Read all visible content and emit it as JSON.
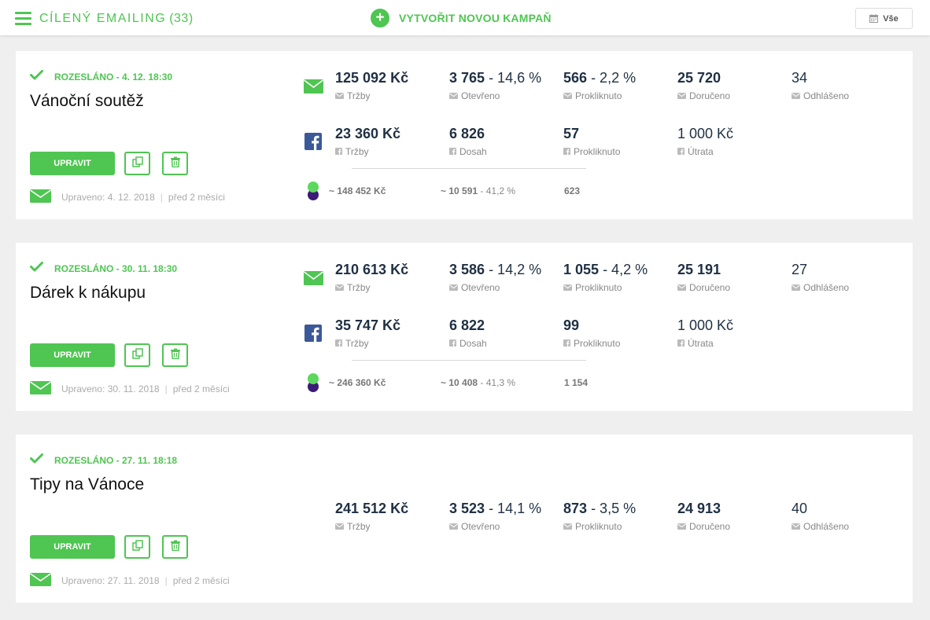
{
  "header": {
    "title": "Cílený emailing",
    "count": "(33)",
    "new_campaign_label": "VYTVOŘIT NOVOU KAMPAŇ",
    "filter_label": "Vše",
    "accent_color": "#4fc552"
  },
  "icons": {
    "menu": "hamburger-icon",
    "new": "plus-circle-icon",
    "filter": "calendar-icon",
    "sent": "check-icon",
    "email": "envelope-icon",
    "facebook": "facebook-icon",
    "copy": "copy-icon",
    "delete": "trash-icon"
  },
  "labels": {
    "edit": "UPRAVIT",
    "modified_prefix": "Upraveno:"
  },
  "campaigns": [
    {
      "status": "ROZESLÁNO - 4. 12. 18:30",
      "name": "Vánoční soutěž",
      "modified_date": "4. 12. 2018",
      "modified_ago": "před 2 měsíci",
      "email": {
        "revenue": {
          "value": "125 092 Kč",
          "label": "Tržby"
        },
        "opened": {
          "value": "3 765",
          "pct": "- 14,6 %",
          "label": "Otevřeno"
        },
        "clicked": {
          "value": "566",
          "pct": "- 2,2 %",
          "label": "Prokliknuto"
        },
        "delivered": {
          "value": "25 720",
          "label": "Doručeno"
        },
        "unsubscribed": {
          "value": "34",
          "label": "Odhlášeno"
        }
      },
      "facebook": {
        "revenue": {
          "value": "23 360 Kč",
          "label": "Tržby"
        },
        "reach": {
          "value": "6 826",
          "label": "Dosah"
        },
        "clicked": {
          "value": "57",
          "label": "Prokliknuto"
        },
        "spend": {
          "value": "1 000 Kč",
          "label": "Útrata"
        }
      },
      "summary": {
        "revenue": "~ 148 452 Kč",
        "reach": "~ 10 591",
        "reach_pct": "- 41,2 %",
        "clicks": "623"
      }
    },
    {
      "status": "ROZESLÁNO - 30. 11. 18:30",
      "name": "Dárek k nákupu",
      "modified_date": "30. 11. 2018",
      "modified_ago": "před 2 měsíci",
      "email": {
        "revenue": {
          "value": "210 613 Kč",
          "label": "Tržby"
        },
        "opened": {
          "value": "3 586",
          "pct": "- 14,2 %",
          "label": "Otevřeno"
        },
        "clicked": {
          "value": "1 055",
          "pct": "- 4,2 %",
          "label": "Prokliknuto"
        },
        "delivered": {
          "value": "25 191",
          "label": "Doručeno"
        },
        "unsubscribed": {
          "value": "27",
          "label": "Odhlášeno"
        }
      },
      "facebook": {
        "revenue": {
          "value": "35 747 Kč",
          "label": "Tržby"
        },
        "reach": {
          "value": "6 822",
          "label": "Dosah"
        },
        "clicked": {
          "value": "99",
          "label": "Prokliknuto"
        },
        "spend": {
          "value": "1 000 Kč",
          "label": "Útrata"
        }
      },
      "summary": {
        "revenue": "~ 246 360 Kč",
        "reach": "~ 10 408",
        "reach_pct": "- 41,3 %",
        "clicks": "1 154"
      }
    },
    {
      "status": "ROZESLÁNO - 27. 11. 18:18",
      "name": "Tipy na Vánoce",
      "modified_date": "27. 11. 2018",
      "modified_ago": "před 2 měsíci",
      "email": {
        "revenue": {
          "value": "241 512 Kč",
          "label": "Tržby"
        },
        "opened": {
          "value": "3 523",
          "pct": "- 14,1 %",
          "label": "Otevřeno"
        },
        "clicked": {
          "value": "873",
          "pct": "- 3,5 %",
          "label": "Prokliknuto"
        },
        "delivered": {
          "value": "24 913",
          "label": "Doručeno"
        },
        "unsubscribed": {
          "value": "40",
          "label": "Odhlášeno"
        }
      }
    }
  ]
}
